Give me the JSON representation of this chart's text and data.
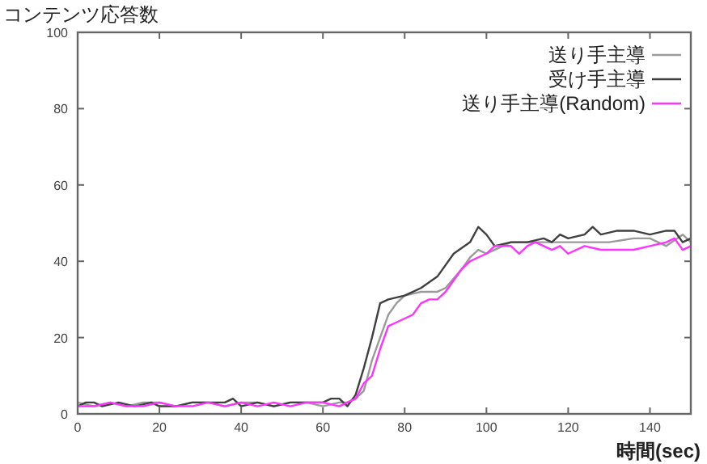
{
  "chart_data": {
    "type": "line",
    "title": "コンテンツ応答数",
    "xlabel": "時間(sec)",
    "xlim": [
      0,
      150
    ],
    "xticks": [
      0,
      20,
      40,
      60,
      80,
      100,
      120,
      140
    ],
    "ylim": [
      0,
      100
    ],
    "yticks": [
      0,
      20,
      40,
      60,
      80,
      100
    ],
    "grid": false,
    "legend": "top right",
    "marker": "none",
    "line_style": "solid",
    "series": [
      {
        "name": "送り手主導",
        "color": "#9a9a9a",
        "x": [
          0,
          4,
          8,
          12,
          16,
          20,
          24,
          28,
          32,
          36,
          40,
          44,
          48,
          52,
          56,
          60,
          64,
          66,
          68,
          70,
          72,
          74,
          76,
          78,
          80,
          84,
          88,
          90,
          94,
          96,
          98,
          100,
          102,
          106,
          110,
          114,
          120,
          124,
          130,
          136,
          140,
          144,
          148,
          150
        ],
        "values": [
          3,
          2,
          3,
          2,
          3,
          3,
          2,
          3,
          3,
          2,
          3,
          3,
          2,
          3,
          3,
          2,
          3,
          3,
          4,
          6,
          14,
          20,
          26,
          29,
          31,
          32,
          32,
          33,
          38,
          41,
          43,
          42,
          43,
          45,
          45,
          45,
          45,
          45,
          45,
          46,
          46,
          44,
          47,
          45
        ]
      },
      {
        "name": "受け手主導",
        "color": "#404040",
        "x": [
          0,
          2,
          4,
          6,
          10,
          14,
          18,
          20,
          24,
          28,
          32,
          36,
          38,
          40,
          44,
          48,
          52,
          56,
          60,
          62,
          64,
          66,
          68,
          70,
          72,
          74,
          76,
          80,
          84,
          88,
          92,
          96,
          98,
          100,
          102,
          106,
          110,
          114,
          116,
          118,
          120,
          124,
          126,
          128,
          132,
          136,
          140,
          144,
          146,
          148,
          150
        ],
        "values": [
          2,
          3,
          3,
          2,
          3,
          2,
          3,
          2,
          2,
          3,
          3,
          3,
          4,
          2,
          3,
          2,
          3,
          3,
          3,
          4,
          4,
          2,
          5,
          12,
          20,
          29,
          30,
          31,
          33,
          36,
          42,
          45,
          49,
          47,
          44,
          45,
          45,
          46,
          45,
          47,
          46,
          47,
          49,
          47,
          48,
          48,
          47,
          48,
          48,
          45,
          46
        ]
      },
      {
        "name": "送り手主導(Random)",
        "color": "#ff33ff",
        "x": [
          0,
          4,
          8,
          12,
          16,
          20,
          24,
          28,
          32,
          36,
          40,
          44,
          48,
          52,
          56,
          60,
          64,
          66,
          68,
          70,
          72,
          74,
          76,
          78,
          80,
          82,
          84,
          86,
          88,
          90,
          92,
          94,
          96,
          98,
          100,
          102,
          104,
          106,
          108,
          110,
          112,
          114,
          116,
          118,
          120,
          124,
          128,
          132,
          136,
          140,
          144,
          146,
          148,
          150
        ],
        "values": [
          2,
          2,
          3,
          2,
          2,
          3,
          2,
          2,
          3,
          2,
          3,
          2,
          3,
          2,
          3,
          3,
          2,
          3,
          4,
          8,
          10,
          17,
          23,
          24,
          25,
          26,
          29,
          30,
          30,
          32,
          35,
          38,
          40,
          41,
          42,
          44,
          44,
          44,
          42,
          44,
          45,
          44,
          43,
          44,
          42,
          44,
          43,
          43,
          43,
          44,
          45,
          46,
          43,
          44
        ]
      }
    ]
  }
}
